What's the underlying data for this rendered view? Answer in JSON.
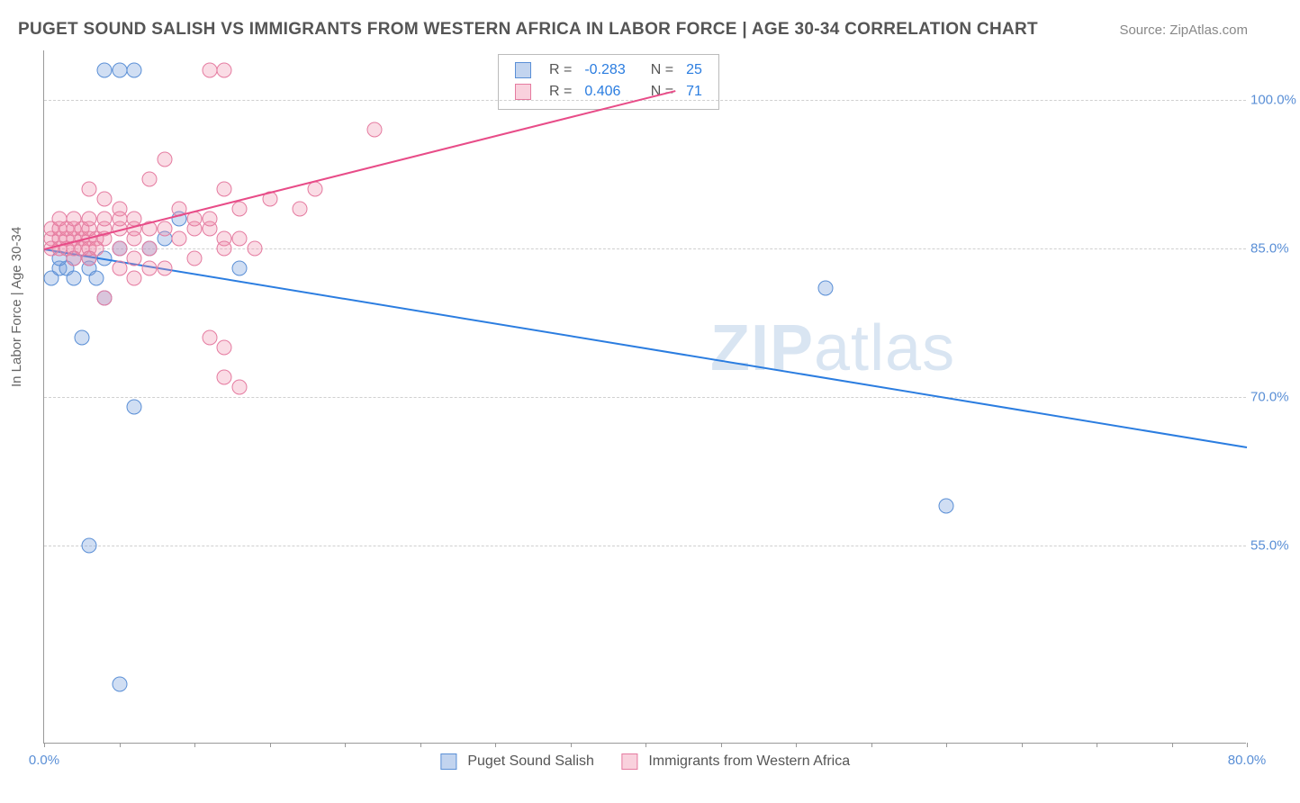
{
  "title": "PUGET SOUND SALISH VS IMMIGRANTS FROM WESTERN AFRICA IN LABOR FORCE | AGE 30-34 CORRELATION CHART",
  "source": "Source: ZipAtlas.com",
  "y_axis_label": "In Labor Force | Age 30-34",
  "watermark": "ZIPatlas",
  "chart": {
    "type": "scatter",
    "background_color": "#ffffff",
    "grid_color": "#d0d0d0",
    "axis_color": "#999999",
    "xlim": [
      0,
      80
    ],
    "ylim": [
      35,
      105
    ],
    "y_ticks": [
      {
        "v": 55.0,
        "label": "55.0%"
      },
      {
        "v": 70.0,
        "label": "70.0%"
      },
      {
        "v": 85.0,
        "label": "85.0%"
      },
      {
        "v": 100.0,
        "label": "100.0%"
      }
    ],
    "x_ticks_minor": [
      0,
      5,
      10,
      15,
      20,
      25,
      30,
      35,
      40,
      45,
      50,
      55,
      60,
      65,
      70,
      75,
      80
    ],
    "x_tick_labels": [
      {
        "v": 0.0,
        "label": "0.0%"
      },
      {
        "v": 80.0,
        "label": "80.0%"
      }
    ],
    "series": [
      {
        "name": "Puget Sound Salish",
        "color_fill": "rgba(120,160,220,0.35)",
        "color_stroke": "#5a8fd6",
        "marker_class": "marker-blue",
        "R": "-0.283",
        "N": "25",
        "trend": {
          "x1": 0,
          "y1": 85,
          "x2": 80,
          "y2": 65,
          "color": "#2b7de0"
        },
        "points": [
          [
            4,
            103
          ],
          [
            5,
            103
          ],
          [
            6,
            103
          ],
          [
            0.5,
            82
          ],
          [
            1,
            83
          ],
          [
            1.5,
            83
          ],
          [
            2,
            84
          ],
          [
            3,
            83
          ],
          [
            3.5,
            82
          ],
          [
            4,
            80
          ],
          [
            5,
            85
          ],
          [
            7,
            85
          ],
          [
            8,
            86
          ],
          [
            9,
            88
          ],
          [
            13,
            83
          ],
          [
            52,
            81
          ],
          [
            60,
            59
          ],
          [
            2.5,
            76
          ],
          [
            6,
            69
          ],
          [
            3,
            55
          ],
          [
            5,
            41
          ],
          [
            1,
            84
          ],
          [
            2,
            82
          ],
          [
            3,
            84
          ],
          [
            4,
            84
          ]
        ]
      },
      {
        "name": "Immigrants from Western Africa",
        "color_fill": "rgba(240,140,170,0.30)",
        "color_stroke": "#e57ba0",
        "marker_class": "marker-pink",
        "R": "0.406",
        "N": "71",
        "trend": {
          "x1": 0,
          "y1": 85,
          "x2": 42,
          "y2": 101,
          "color": "#e84c88"
        },
        "points": [
          [
            11,
            103
          ],
          [
            12,
            103
          ],
          [
            22,
            97
          ],
          [
            8,
            94
          ],
          [
            7,
            92
          ],
          [
            3,
            91
          ],
          [
            4,
            90
          ],
          [
            5,
            89
          ],
          [
            12,
            91
          ],
          [
            13,
            89
          ],
          [
            15,
            90
          ],
          [
            17,
            89
          ],
          [
            18,
            91
          ],
          [
            0.5,
            86
          ],
          [
            1,
            86
          ],
          [
            1.5,
            86
          ],
          [
            2,
            86
          ],
          [
            2.5,
            86
          ],
          [
            3,
            86
          ],
          [
            3.5,
            86
          ],
          [
            4,
            86
          ],
          [
            0.5,
            87
          ],
          [
            1,
            87
          ],
          [
            1.5,
            87
          ],
          [
            2,
            87
          ],
          [
            2.5,
            87
          ],
          [
            3,
            87
          ],
          [
            0.5,
            85
          ],
          [
            1,
            85
          ],
          [
            1.5,
            85
          ],
          [
            2,
            85
          ],
          [
            2.5,
            85
          ],
          [
            3,
            85
          ],
          [
            3.5,
            85
          ],
          [
            4,
            87
          ],
          [
            5,
            87
          ],
          [
            6,
            87
          ],
          [
            7,
            87
          ],
          [
            4,
            88
          ],
          [
            5,
            88
          ],
          [
            6,
            88
          ],
          [
            6,
            86
          ],
          [
            7,
            85
          ],
          [
            8,
            87
          ],
          [
            9,
            86
          ],
          [
            10,
            87
          ],
          [
            11,
            87
          ],
          [
            12,
            86
          ],
          [
            13,
            86
          ],
          [
            6,
            84
          ],
          [
            7,
            83
          ],
          [
            8,
            83
          ],
          [
            5,
            83
          ],
          [
            6,
            82
          ],
          [
            10,
            84
          ],
          [
            12,
            85
          ],
          [
            4,
            80
          ],
          [
            14,
            85
          ],
          [
            2,
            84
          ],
          [
            3,
            84
          ],
          [
            5,
            85
          ],
          [
            11,
            76
          ],
          [
            12,
            75
          ],
          [
            12,
            72
          ],
          [
            13,
            71
          ],
          [
            1,
            88
          ],
          [
            2,
            88
          ],
          [
            3,
            88
          ],
          [
            9,
            89
          ],
          [
            10,
            88
          ],
          [
            11,
            88
          ]
        ]
      }
    ],
    "legend_series1": "Puget Sound Salish",
    "legend_series2": "Immigrants from Western Africa",
    "marker_size": 17,
    "line_width": 2,
    "tick_label_color": "#5a8fd6",
    "tick_label_fontsize": 15,
    "title_fontsize": 19,
    "title_color": "#555555"
  }
}
